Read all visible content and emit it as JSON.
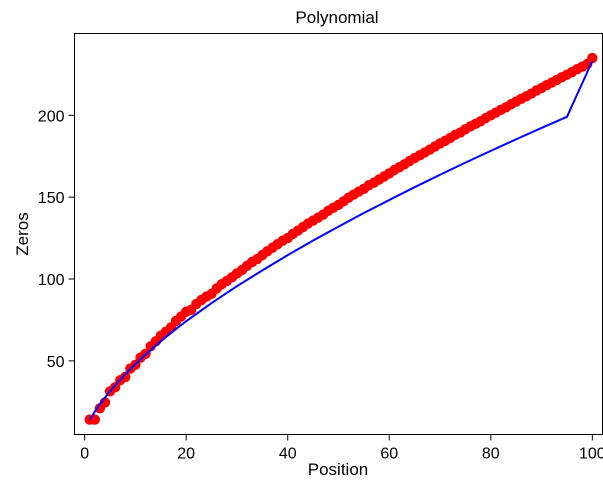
{
  "chart_data": {
    "type": "scatter",
    "title": "Polynomial",
    "xlabel": "Position",
    "ylabel": "Zeros",
    "xlim": [
      -2,
      102
    ],
    "ylim": [
      5,
      250
    ],
    "xticks": [
      0,
      20,
      40,
      60,
      80,
      100
    ],
    "yticks": [
      50,
      100,
      150,
      200
    ],
    "grid": false,
    "series": [
      {
        "kind": "points",
        "color": "#ff0000",
        "x": [
          1,
          2,
          3,
          4,
          5,
          6,
          7,
          8,
          9,
          10,
          11,
          12,
          13,
          14,
          15,
          16,
          17,
          18,
          19,
          20,
          21,
          22,
          23,
          24,
          25,
          26,
          27,
          28,
          29,
          30,
          31,
          32,
          33,
          34,
          35,
          36,
          37,
          38,
          39,
          40,
          41,
          42,
          43,
          44,
          45,
          46,
          47,
          48,
          49,
          50,
          51,
          52,
          53,
          54,
          55,
          56,
          57,
          58,
          59,
          60,
          61,
          62,
          63,
          64,
          65,
          66,
          67,
          68,
          69,
          70,
          71,
          72,
          73,
          74,
          75,
          76,
          77,
          78,
          79,
          80,
          81,
          82,
          83,
          84,
          85,
          86,
          87,
          88,
          89,
          90,
          91,
          92,
          93,
          94,
          95,
          96,
          97,
          98,
          99,
          100
        ],
        "y": [
          14.1,
          14.1,
          21.0,
          24.6,
          31.4,
          33.8,
          38.2,
          40.2,
          45.3,
          47.6,
          52.0,
          54.3,
          58.9,
          61.9,
          65.4,
          67.8,
          70.4,
          74.4,
          77.1,
          80.0,
          81.2,
          84.8,
          87.2,
          89.3,
          91.0,
          94.2,
          96.8,
          98.8,
          101.0,
          103.4,
          105.5,
          108.1,
          110.4,
          112.2,
          114.6,
          117.0,
          119.1,
          121.3,
          123.4,
          125.0,
          127.5,
          129.5,
          131.7,
          133.9,
          135.7,
          137.5,
          139.4,
          141.7,
          143.6,
          145.3,
          147.5,
          149.7,
          151.6,
          153.4,
          155.1,
          157.3,
          158.9,
          160.8,
          162.7,
          164.5,
          166.6,
          168.3,
          170.1,
          172.1,
          173.9,
          175.6,
          177.3,
          179.1,
          181.0,
          182.8,
          184.4,
          186.2,
          188.1,
          189.5,
          191.5,
          193.3,
          194.8,
          196.4,
          198.3,
          200.0,
          201.7,
          203.4,
          204.9,
          206.8,
          208.4,
          210.1,
          211.6,
          213.3,
          215.2,
          216.7,
          218.4,
          220.0,
          221.6,
          223.3,
          224.8,
          226.4,
          228.2,
          229.7,
          231.4,
          235.0
        ]
      },
      {
        "kind": "fit-line",
        "color": "#0000ff",
        "x": [
          1,
          2,
          3,
          4,
          5,
          6,
          7,
          8,
          9,
          10,
          12,
          14,
          16,
          18,
          20,
          25,
          30,
          35,
          40,
          45,
          50,
          55,
          60,
          65,
          70,
          75,
          80,
          85,
          90,
          95,
          100
        ],
        "y": [
          14.0,
          19.0,
          23.5,
          27.5,
          31.5,
          35.0,
          38.5,
          41.8,
          45.0,
          48.0,
          53.8,
          59.3,
          64.5,
          69.5,
          74.2,
          85.3,
          95.6,
          105.3,
          114.6,
          123.5,
          132.0,
          140.3,
          148.3,
          156.1,
          163.7,
          171.1,
          178.3,
          185.4,
          192.3,
          199.1,
          233.2
        ]
      }
    ]
  }
}
